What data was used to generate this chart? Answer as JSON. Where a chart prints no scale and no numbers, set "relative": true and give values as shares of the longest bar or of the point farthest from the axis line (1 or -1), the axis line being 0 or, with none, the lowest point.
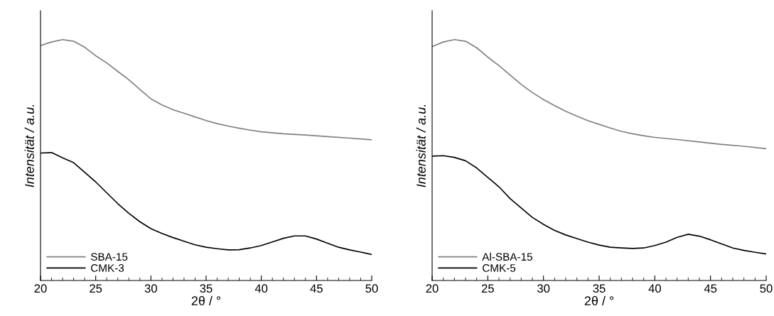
{
  "chart_data": [
    {
      "type": "line",
      "relative": true,
      "xlabel": "2θ / °",
      "ylabel": "Intensität / a.u.",
      "xlim": [
        20,
        50
      ],
      "xticks": [
        20,
        {
          "value": 21,
          "label": null
        },
        {
          "value": 22,
          "label": null
        },
        {
          "value": 23,
          "label": null
        },
        {
          "value": 24,
          "label": null
        },
        25,
        {
          "value": 26,
          "label": null
        },
        {
          "value": 27,
          "label": null
        },
        {
          "value": 28,
          "label": null
        },
        {
          "value": 29,
          "label": null
        },
        30,
        {
          "value": 31,
          "label": null
        },
        {
          "value": 32,
          "label": null
        },
        {
          "value": 33,
          "label": null
        },
        {
          "value": 34,
          "label": null
        },
        35,
        {
          "value": 36,
          "label": null
        },
        {
          "value": 37,
          "label": null
        },
        {
          "value": 38,
          "label": null
        },
        {
          "value": 39,
          "label": null
        },
        40,
        {
          "value": 41,
          "label": null
        },
        {
          "value": 42,
          "label": null
        },
        {
          "value": 43,
          "label": null
        },
        {
          "value": 44,
          "label": null
        },
        45,
        {
          "value": 46,
          "label": null
        },
        {
          "value": 47,
          "label": null
        },
        {
          "value": 48,
          "label": null
        },
        {
          "value": 49,
          "label": null
        },
        50
      ],
      "tick_labels": "x",
      "legend": "bottom left",
      "grid": false,
      "series": [
        {
          "name": "SBA-15",
          "color": "#808080",
          "x": [
            20,
            21,
            22,
            23,
            24,
            25,
            26,
            27,
            28,
            29,
            30,
            31,
            32,
            33,
            34,
            35,
            36,
            37,
            38,
            39,
            40,
            42,
            44,
            46,
            48,
            50
          ],
          "values": [
            0.975,
            0.99,
            1.0,
            0.993,
            0.968,
            0.933,
            0.903,
            0.868,
            0.833,
            0.793,
            0.754,
            0.729,
            0.709,
            0.694,
            0.679,
            0.664,
            0.651,
            0.641,
            0.632,
            0.624,
            0.617,
            0.609,
            0.604,
            0.597,
            0.591,
            0.584
          ]
        },
        {
          "name": "CMK-3",
          "color": "#000000",
          "x": [
            20,
            21,
            22,
            23,
            24,
            25,
            26,
            27,
            28,
            29,
            30,
            31,
            32,
            33,
            34,
            35,
            36,
            37,
            38,
            39,
            40,
            41,
            42,
            43,
            44,
            45,
            46,
            47,
            48,
            49,
            50
          ],
          "values": [
            0.529,
            0.531,
            0.509,
            0.489,
            0.449,
            0.409,
            0.364,
            0.319,
            0.279,
            0.244,
            0.215,
            0.195,
            0.178,
            0.163,
            0.148,
            0.138,
            0.132,
            0.127,
            0.128,
            0.135,
            0.145,
            0.16,
            0.175,
            0.185,
            0.185,
            0.172,
            0.155,
            0.138,
            0.127,
            0.118,
            0.108
          ]
        }
      ]
    },
    {
      "type": "line",
      "relative": true,
      "xlabel": "2θ / °",
      "ylabel": "Intensität / a.u.",
      "xlim": [
        20,
        50
      ],
      "xticks": [
        20,
        {
          "value": 21,
          "label": null
        },
        {
          "value": 22,
          "label": null
        },
        {
          "value": 23,
          "label": null
        },
        {
          "value": 24,
          "label": null
        },
        25,
        {
          "value": 26,
          "label": null
        },
        {
          "value": 27,
          "label": null
        },
        {
          "value": 28,
          "label": null
        },
        {
          "value": 29,
          "label": null
        },
        30,
        {
          "value": 31,
          "label": null
        },
        {
          "value": 32,
          "label": null
        },
        {
          "value": 33,
          "label": null
        },
        {
          "value": 34,
          "label": null
        },
        35,
        {
          "value": 36,
          "label": null
        },
        {
          "value": 37,
          "label": null
        },
        {
          "value": 38,
          "label": null
        },
        {
          "value": 39,
          "label": null
        },
        40,
        {
          "value": 41,
          "label": null
        },
        {
          "value": 42,
          "label": null
        },
        {
          "value": 43,
          "label": null
        },
        {
          "value": 44,
          "label": null
        },
        45,
        {
          "value": 46,
          "label": null
        },
        {
          "value": 47,
          "label": null
        },
        {
          "value": 48,
          "label": null
        },
        {
          "value": 49,
          "label": null
        },
        50
      ],
      "tick_labels": "x",
      "legend": "bottom left",
      "grid": false,
      "series": [
        {
          "name": "Al-SBA-15",
          "color": "#808080",
          "x": [
            20,
            21,
            22,
            23,
            24,
            25,
            26,
            27,
            28,
            29,
            30,
            31,
            32,
            33,
            34,
            35,
            36,
            37,
            38,
            39,
            40,
            42,
            44,
            46,
            48,
            50
          ],
          "values": [
            0.971,
            0.99,
            1.0,
            0.993,
            0.966,
            0.927,
            0.892,
            0.853,
            0.814,
            0.78,
            0.751,
            0.726,
            0.702,
            0.682,
            0.663,
            0.648,
            0.633,
            0.619,
            0.609,
            0.601,
            0.594,
            0.585,
            0.575,
            0.565,
            0.557,
            0.547
          ]
        },
        {
          "name": "CMK-5",
          "color": "#000000",
          "x": [
            20,
            21,
            22,
            23,
            24,
            25,
            26,
            27,
            28,
            29,
            30,
            31,
            32,
            33,
            34,
            35,
            36,
            37,
            38,
            39,
            40,
            41,
            42,
            43,
            44,
            45,
            46,
            47,
            48,
            49,
            50
          ],
          "values": [
            0.516,
            0.518,
            0.511,
            0.497,
            0.467,
            0.428,
            0.389,
            0.34,
            0.301,
            0.262,
            0.233,
            0.208,
            0.189,
            0.174,
            0.159,
            0.147,
            0.138,
            0.135,
            0.133,
            0.135,
            0.145,
            0.159,
            0.179,
            0.192,
            0.184,
            0.169,
            0.152,
            0.135,
            0.125,
            0.117,
            0.11
          ]
        }
      ]
    }
  ]
}
